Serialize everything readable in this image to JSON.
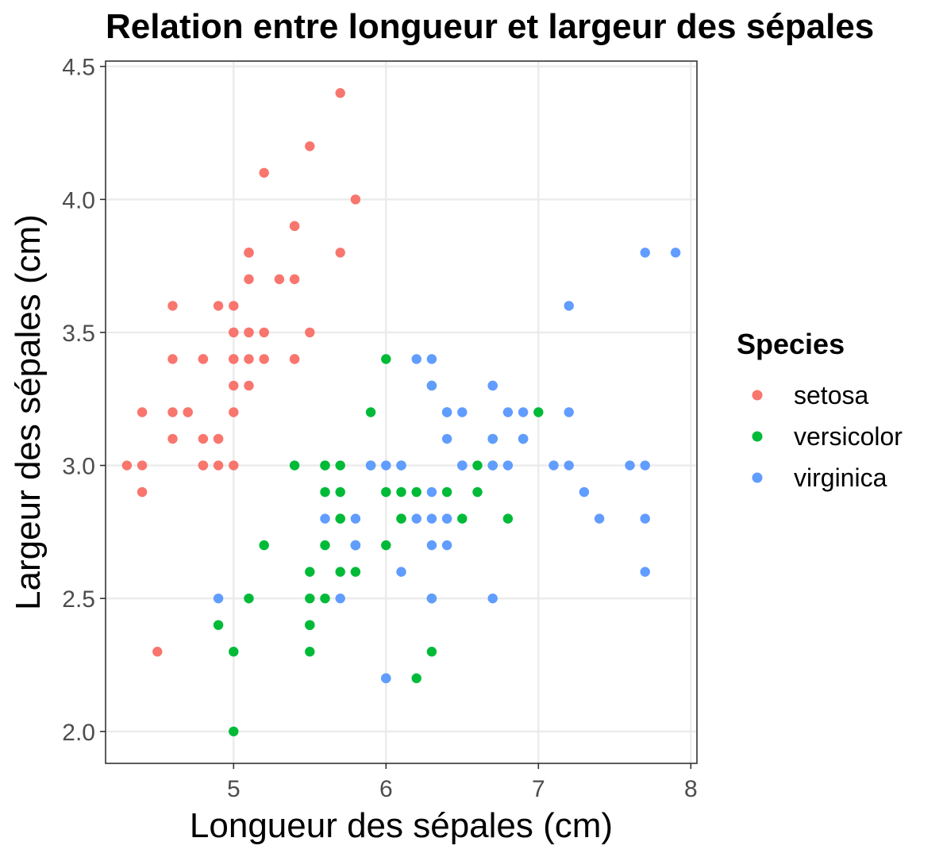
{
  "chart_data": {
    "type": "scatter",
    "title": "Relation entre longueur et largeur des sépales",
    "xlabel": "Longueur des sépales (cm)",
    "ylabel": "Largeur des sépales (cm)",
    "xlim": [
      4.16,
      8.04
    ],
    "ylim": [
      1.88,
      4.52
    ],
    "x_ticks": [
      5,
      6,
      7,
      8
    ],
    "x_tick_labels": [
      "5",
      "6",
      "7",
      "8"
    ],
    "y_ticks": [
      2.0,
      2.5,
      3.0,
      3.5,
      4.0,
      4.5
    ],
    "y_tick_labels": [
      "2.0",
      "2.5",
      "3.0",
      "3.5",
      "4.0",
      "4.5"
    ],
    "grid": true,
    "legend": {
      "title": "Species",
      "position": "right"
    },
    "series": [
      {
        "name": "setosa",
        "color": "#F8766D",
        "points": [
          [
            5.1,
            3.5
          ],
          [
            4.9,
            3.0
          ],
          [
            4.7,
            3.2
          ],
          [
            4.6,
            3.1
          ],
          [
            5.0,
            3.6
          ],
          [
            5.4,
            3.9
          ],
          [
            4.6,
            3.4
          ],
          [
            5.0,
            3.4
          ],
          [
            4.4,
            2.9
          ],
          [
            4.9,
            3.1
          ],
          [
            5.4,
            3.7
          ],
          [
            4.8,
            3.4
          ],
          [
            4.8,
            3.0
          ],
          [
            4.3,
            3.0
          ],
          [
            5.8,
            4.0
          ],
          [
            5.7,
            4.4
          ],
          [
            5.4,
            3.9
          ],
          [
            5.1,
            3.5
          ],
          [
            5.7,
            3.8
          ],
          [
            5.1,
            3.8
          ],
          [
            5.4,
            3.4
          ],
          [
            5.1,
            3.7
          ],
          [
            4.6,
            3.6
          ],
          [
            5.1,
            3.3
          ],
          [
            4.8,
            3.4
          ],
          [
            5.0,
            3.0
          ],
          [
            5.0,
            3.4
          ],
          [
            5.2,
            3.5
          ],
          [
            5.2,
            3.4
          ],
          [
            4.7,
            3.2
          ],
          [
            4.8,
            3.1
          ],
          [
            5.4,
            3.4
          ],
          [
            5.2,
            4.1
          ],
          [
            5.5,
            4.2
          ],
          [
            4.9,
            3.1
          ],
          [
            5.0,
            3.2
          ],
          [
            5.5,
            3.5
          ],
          [
            4.9,
            3.6
          ],
          [
            4.4,
            3.0
          ],
          [
            5.1,
            3.4
          ],
          [
            5.0,
            3.5
          ],
          [
            4.5,
            2.3
          ],
          [
            4.4,
            3.2
          ],
          [
            5.0,
            3.5
          ],
          [
            5.1,
            3.8
          ],
          [
            4.8,
            3.0
          ],
          [
            5.1,
            3.8
          ],
          [
            4.6,
            3.2
          ],
          [
            5.3,
            3.7
          ],
          [
            5.0,
            3.3
          ]
        ]
      },
      {
        "name": "versicolor",
        "color": "#00BA38",
        "points": [
          [
            7.0,
            3.2
          ],
          [
            6.4,
            3.2
          ],
          [
            6.9,
            3.1
          ],
          [
            5.5,
            2.3
          ],
          [
            6.5,
            2.8
          ],
          [
            5.7,
            2.8
          ],
          [
            6.3,
            3.3
          ],
          [
            4.9,
            2.4
          ],
          [
            6.6,
            2.9
          ],
          [
            5.2,
            2.7
          ],
          [
            5.0,
            2.0
          ],
          [
            5.9,
            3.0
          ],
          [
            6.0,
            2.2
          ],
          [
            6.1,
            2.9
          ],
          [
            5.6,
            2.9
          ],
          [
            6.7,
            3.1
          ],
          [
            5.6,
            3.0
          ],
          [
            5.8,
            2.7
          ],
          [
            6.2,
            2.2
          ],
          [
            5.6,
            2.5
          ],
          [
            5.9,
            3.2
          ],
          [
            6.1,
            2.8
          ],
          [
            6.3,
            2.5
          ],
          [
            6.1,
            2.8
          ],
          [
            6.4,
            2.9
          ],
          [
            6.6,
            3.0
          ],
          [
            6.8,
            2.8
          ],
          [
            6.7,
            3.0
          ],
          [
            6.0,
            2.9
          ],
          [
            5.7,
            2.6
          ],
          [
            5.5,
            2.4
          ],
          [
            5.5,
            2.4
          ],
          [
            5.8,
            2.7
          ],
          [
            6.0,
            2.7
          ],
          [
            5.4,
            3.0
          ],
          [
            6.0,
            3.4
          ],
          [
            6.7,
            3.1
          ],
          [
            6.3,
            2.3
          ],
          [
            5.6,
            3.0
          ],
          [
            5.5,
            2.5
          ],
          [
            5.5,
            2.6
          ],
          [
            6.1,
            3.0
          ],
          [
            5.8,
            2.6
          ],
          [
            5.0,
            2.3
          ],
          [
            5.6,
            2.7
          ],
          [
            5.7,
            3.0
          ],
          [
            5.7,
            2.9
          ],
          [
            6.2,
            2.9
          ],
          [
            5.1,
            2.5
          ],
          [
            5.7,
            2.8
          ]
        ]
      },
      {
        "name": "virginica",
        "color": "#619CFF",
        "points": [
          [
            6.3,
            3.3
          ],
          [
            5.8,
            2.7
          ],
          [
            7.1,
            3.0
          ],
          [
            6.3,
            2.9
          ],
          [
            6.5,
            3.0
          ],
          [
            7.6,
            3.0
          ],
          [
            4.9,
            2.5
          ],
          [
            7.3,
            2.9
          ],
          [
            6.7,
            2.5
          ],
          [
            7.2,
            3.6
          ],
          [
            6.5,
            3.2
          ],
          [
            6.4,
            2.7
          ],
          [
            6.8,
            3.0
          ],
          [
            5.7,
            2.5
          ],
          [
            5.8,
            2.8
          ],
          [
            6.4,
            3.2
          ],
          [
            6.5,
            3.0
          ],
          [
            7.7,
            3.8
          ],
          [
            7.7,
            2.6
          ],
          [
            6.0,
            2.2
          ],
          [
            6.9,
            3.2
          ],
          [
            5.6,
            2.8
          ],
          [
            7.7,
            2.8
          ],
          [
            6.3,
            2.7
          ],
          [
            6.7,
            3.3
          ],
          [
            7.2,
            3.2
          ],
          [
            6.2,
            2.8
          ],
          [
            6.1,
            3.0
          ],
          [
            6.4,
            2.8
          ],
          [
            7.2,
            3.0
          ],
          [
            7.4,
            2.8
          ],
          [
            7.9,
            3.8
          ],
          [
            6.4,
            2.8
          ],
          [
            6.3,
            2.8
          ],
          [
            6.1,
            2.6
          ],
          [
            7.7,
            3.0
          ],
          [
            6.3,
            3.4
          ],
          [
            6.4,
            3.1
          ],
          [
            6.0,
            3.0
          ],
          [
            6.9,
            3.1
          ],
          [
            6.7,
            3.1
          ],
          [
            6.9,
            3.1
          ],
          [
            5.8,
            2.7
          ],
          [
            6.8,
            3.2
          ],
          [
            6.7,
            3.3
          ],
          [
            6.7,
            3.0
          ],
          [
            6.3,
            2.5
          ],
          [
            6.5,
            3.0
          ],
          [
            6.2,
            3.4
          ],
          [
            5.9,
            3.0
          ]
        ]
      }
    ]
  }
}
